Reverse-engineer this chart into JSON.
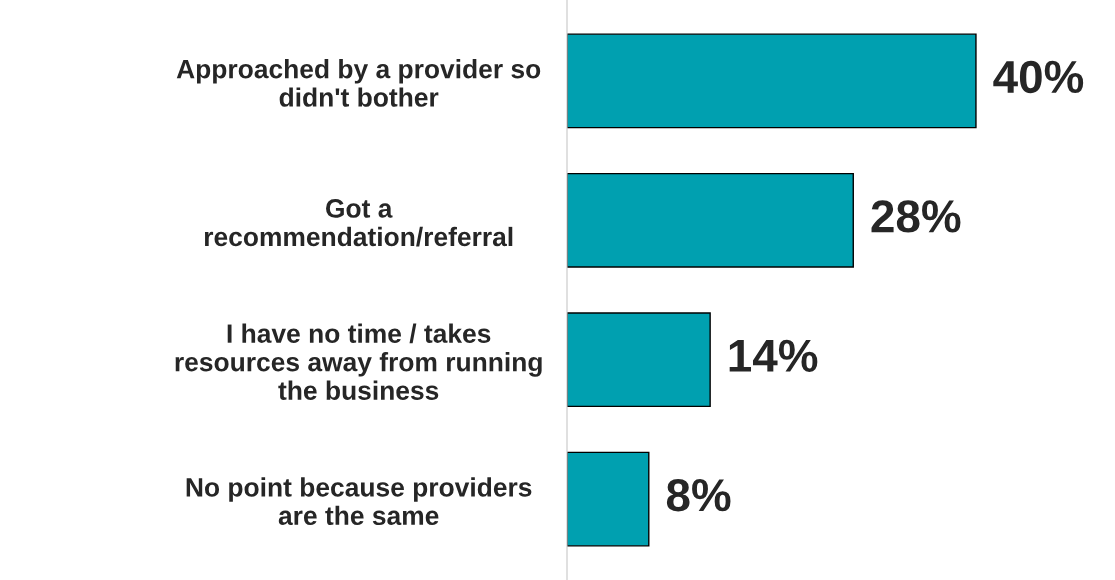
{
  "chart_data": {
    "type": "bar",
    "orientation": "horizontal",
    "categories": [
      "Approached by a provider so\ndidn't bother",
      "Got a\nrecommendation/referral",
      "I have no time / takes\nresources away from running\nthe business",
      "No point because providers\nare the same"
    ],
    "values": [
      40,
      28,
      14,
      8
    ],
    "value_labels": [
      "40%",
      "28%",
      "14%",
      "8%"
    ],
    "color": "#00a0b0",
    "grid": false,
    "legend": false
  }
}
